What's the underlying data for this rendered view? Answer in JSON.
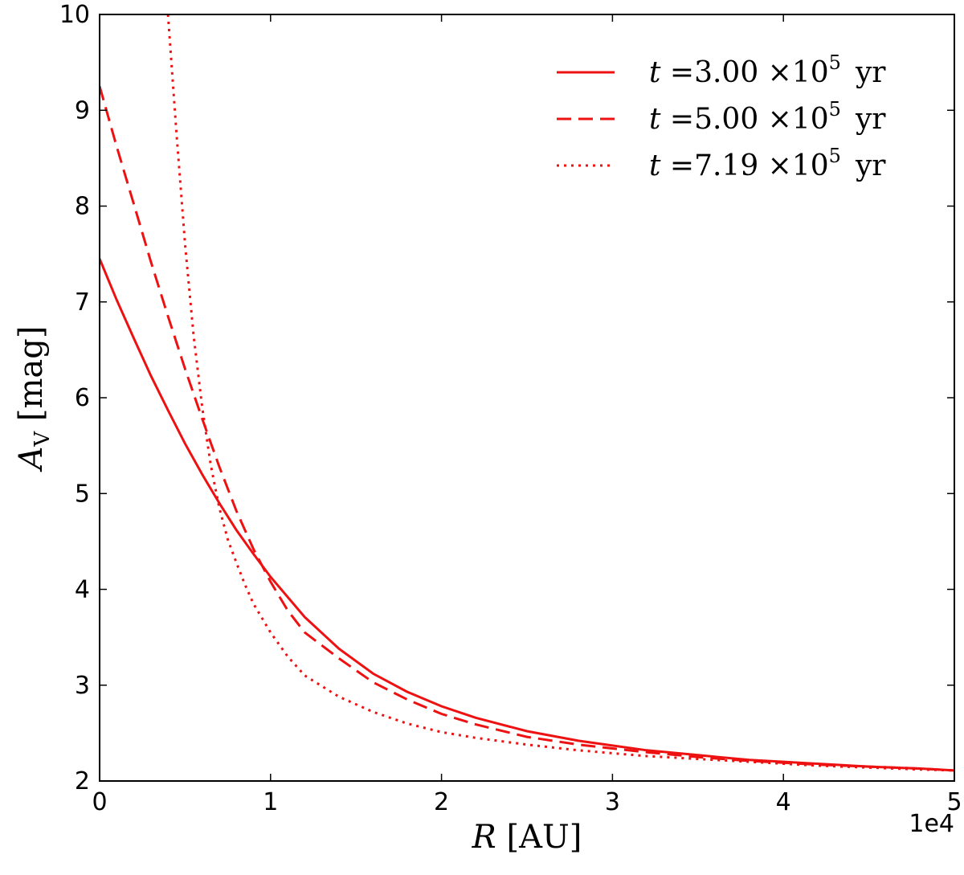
{
  "chart_data": {
    "type": "line",
    "xlabel": "R [AU]",
    "ylabel": "A_V [mag]",
    "x_offset_label": "1e4",
    "xlim": [
      0,
      50000
    ],
    "ylim": [
      2,
      10
    ],
    "x_ticks": [
      0,
      10000,
      20000,
      30000,
      40000,
      50000
    ],
    "x_tick_labels": [
      "0",
      "1",
      "2",
      "3",
      "4",
      "5"
    ],
    "y_ticks": [
      2,
      3,
      4,
      5,
      6,
      7,
      8,
      9,
      10
    ],
    "y_tick_labels": [
      "2",
      "3",
      "4",
      "5",
      "6",
      "7",
      "8",
      "9",
      "10"
    ],
    "grid": false,
    "legend_position": "top-right",
    "line_color": "#ee1111",
    "series": [
      {
        "name": "t = 3.00 ×10^5 yr",
        "legend": {
          "prefix": "t =3.00 ×10",
          "exp": "5",
          "unit": "yr"
        },
        "style": "solid",
        "x": [
          0,
          1000,
          2000,
          3000,
          4000,
          5000,
          6000,
          7000,
          8000,
          9000,
          10000,
          12000,
          14000,
          16000,
          18000,
          20000,
          22000,
          25000,
          28000,
          30000,
          32000,
          35000,
          38000,
          40000,
          42000,
          45000,
          48000,
          50000
        ],
        "y": [
          7.45,
          7.02,
          6.62,
          6.23,
          5.87,
          5.52,
          5.2,
          4.9,
          4.62,
          4.37,
          4.13,
          3.71,
          3.38,
          3.12,
          2.93,
          2.78,
          2.66,
          2.52,
          2.42,
          2.37,
          2.32,
          2.27,
          2.22,
          2.2,
          2.18,
          2.15,
          2.13,
          2.11
        ]
      },
      {
        "name": "t = 5.00 ×10^5 yr",
        "legend": {
          "prefix": "t =5.00 ×10",
          "exp": "5",
          "unit": "yr"
        },
        "style": "dashed",
        "x": [
          0,
          1000,
          2000,
          3000,
          4000,
          5000,
          6000,
          7000,
          8000,
          9000,
          10000,
          11000,
          12000,
          14000,
          16000,
          18000,
          20000,
          22000,
          25000,
          28000,
          30000,
          32000,
          35000,
          38000,
          40000,
          42000,
          45000,
          48000,
          50000
        ],
        "y": [
          9.25,
          8.62,
          8.02,
          7.42,
          6.85,
          6.3,
          5.78,
          5.28,
          4.82,
          4.42,
          4.08,
          3.78,
          3.55,
          3.28,
          3.03,
          2.85,
          2.7,
          2.59,
          2.46,
          2.38,
          2.34,
          2.3,
          2.25,
          2.21,
          2.19,
          2.17,
          2.15,
          2.13,
          2.11
        ]
      },
      {
        "name": "t = 7.19 ×10^5 yr",
        "legend": {
          "prefix": "t =7.19 ×10",
          "exp": "5",
          "unit": "yr"
        },
        "style": "dotted",
        "x": [
          4000,
          4500,
          5000,
          5500,
          6000,
          6500,
          7000,
          7500,
          8000,
          8500,
          9000,
          10000,
          11000,
          12000,
          14000,
          16000,
          18000,
          20000,
          22000,
          25000,
          28000,
          30000,
          32000,
          35000,
          38000,
          40000,
          42000,
          45000,
          48000,
          50000
        ],
        "y": [
          10.0,
          8.75,
          7.6,
          6.65,
          5.9,
          5.3,
          4.85,
          4.52,
          4.28,
          4.05,
          3.85,
          3.55,
          3.3,
          3.1,
          2.88,
          2.72,
          2.6,
          2.51,
          2.45,
          2.38,
          2.32,
          2.29,
          2.26,
          2.23,
          2.2,
          2.18,
          2.16,
          2.14,
          2.12,
          2.11
        ]
      }
    ]
  }
}
